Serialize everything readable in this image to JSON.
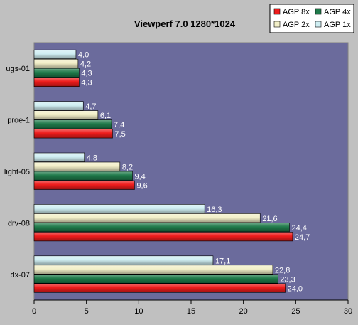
{
  "chart_data": {
    "type": "bar",
    "orientation": "horizontal",
    "title": "Viewperf 7.0  1280*1024",
    "xlabel": "",
    "ylabel": "",
    "categories": [
      "ugs-01",
      "proe-1",
      "light-05",
      "drv-08",
      "dx-07"
    ],
    "series": [
      {
        "name": "AGP 1x",
        "color": "#cfeef2",
        "values": [
          4.0,
          4.7,
          4.8,
          16.3,
          17.1
        ],
        "labels": [
          "4,0",
          "4,7",
          "4,8",
          "16,3",
          "17,1"
        ]
      },
      {
        "name": "AGP 2x",
        "color": "#f2efc8",
        "values": [
          4.2,
          6.1,
          8.2,
          21.6,
          22.8
        ],
        "labels": [
          "4,2",
          "6,1",
          "8,2",
          "21,6",
          "22,8"
        ]
      },
      {
        "name": "AGP 4x",
        "color": "#1f7a4a",
        "values": [
          4.3,
          7.4,
          9.4,
          24.4,
          23.3
        ],
        "labels": [
          "4,3",
          "7,4",
          "9,4",
          "24,4",
          "23,3"
        ]
      },
      {
        "name": "AGP 8x",
        "color": "#ee1c1c",
        "values": [
          4.3,
          7.5,
          9.6,
          24.7,
          24.0
        ],
        "labels": [
          "4,3",
          "7,5",
          "9,6",
          "24,7",
          "24,0"
        ]
      }
    ],
    "legend": {
      "position": "top-right",
      "entries": [
        "AGP 8x",
        "AGP 4x",
        "AGP 2x",
        "AGP 1x"
      ]
    },
    "xlim": [
      0,
      30
    ],
    "xticks": [
      "0",
      "5",
      "10",
      "15",
      "20",
      "25",
      "30"
    ],
    "grid": false,
    "plot_background": "#6b6b9c",
    "background": "#c0c0c0"
  }
}
